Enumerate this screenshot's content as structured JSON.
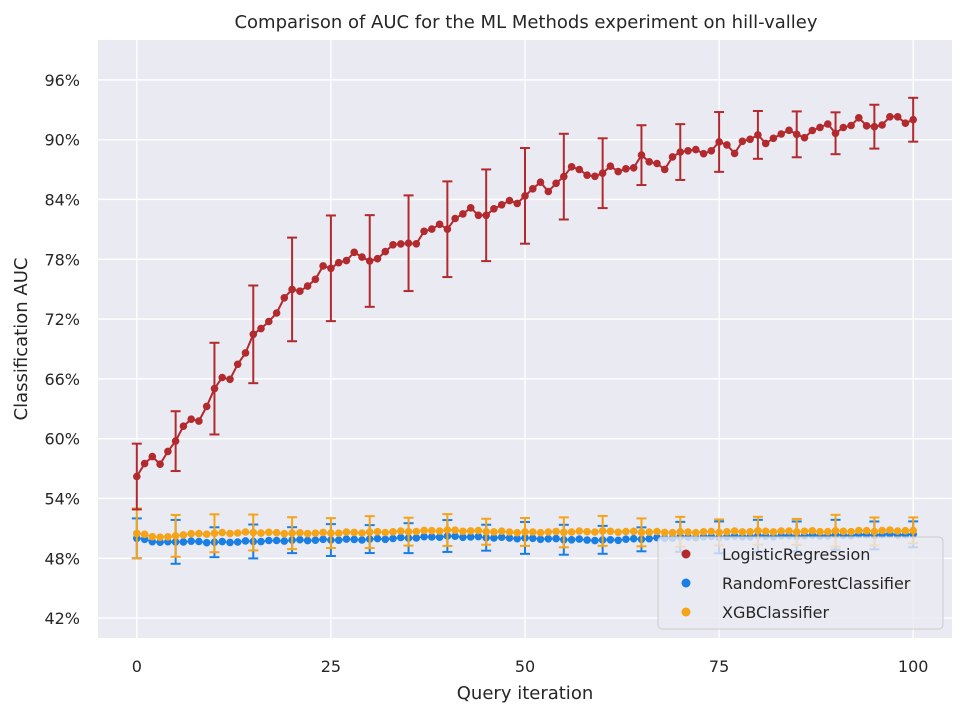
{
  "chart_data": {
    "type": "line",
    "title": "Comparison of AUC for the ML Methods experiment on hill-valley",
    "xlabel": "Query iteration",
    "ylabel": "Classification AUC",
    "xlim": [
      -5,
      105
    ],
    "ylim": [
      40,
      100
    ],
    "xticks": [
      0,
      25,
      50,
      75,
      100
    ],
    "xtick_labels": [
      "0",
      "25",
      "50",
      "75",
      "100"
    ],
    "yticks": [
      42,
      48,
      54,
      60,
      66,
      72,
      78,
      84,
      90,
      96
    ],
    "ytick_labels": [
      "42%",
      "48%",
      "54%",
      "60%",
      "66%",
      "72%",
      "78%",
      "84%",
      "90%",
      "96%"
    ],
    "grid": true,
    "legend_position": "lower-right",
    "errorbar_every": 5,
    "series": [
      {
        "name": "LogisticRegression",
        "color": "#b22a2e",
        "anchors": {
          "x": [
            0,
            1,
            2,
            3,
            4,
            5,
            6,
            7,
            8,
            9,
            10,
            12,
            15,
            16,
            18,
            20,
            22,
            25,
            27,
            29,
            30,
            31,
            33,
            35,
            37,
            40,
            43,
            45,
            47,
            49,
            50,
            51,
            53,
            55,
            57,
            60,
            63,
            65,
            68,
            70,
            71,
            72,
            74,
            75,
            77,
            80,
            83,
            85,
            88,
            90,
            92,
            95,
            97,
            100
          ],
          "y": [
            56.2,
            57.3,
            57.8,
            58.0,
            58.9,
            59.6,
            60.8,
            62.0,
            62.3,
            63.2,
            64.8,
            66.5,
            69.8,
            71.2,
            72.9,
            74.6,
            75.6,
            77.2,
            78.4,
            78.0,
            77.8,
            78.6,
            79.0,
            79.8,
            80.4,
            81.7,
            82.7,
            82.8,
            83.1,
            84.2,
            84.4,
            85.0,
            85.2,
            86.5,
            86.9,
            86.5,
            87.3,
            87.8,
            87.6,
            88.4,
            88.8,
            89.4,
            88.4,
            89.6,
            89.3,
            90.1,
            90.4,
            90.6,
            91.0,
            91.2,
            91.5,
            91.6,
            91.9,
            92.0
          ]
        },
        "errors": [
          3.3,
          3.0,
          4.6,
          4.9,
          5.2,
          5.3,
          4.6,
          4.8,
          4.8,
          4.6,
          4.8,
          4.3,
          3.5,
          3.0,
          2.8,
          3.0,
          2.4,
          2.3,
          2.1,
          2.2,
          2.2
        ]
      },
      {
        "name": "RandomForestClassifier",
        "color": "#1a7fe5",
        "anchors": {
          "x": [
            0,
            2,
            4,
            6,
            10,
            20,
            30,
            40,
            50,
            60,
            70,
            80,
            90,
            100
          ],
          "y": [
            50.0,
            49.7,
            49.6,
            49.7,
            49.6,
            49.8,
            49.9,
            50.2,
            50.0,
            49.8,
            50.1,
            50.2,
            50.3,
            50.4
          ]
        },
        "errors": [
          2.0,
          2.2,
          1.5,
          1.7,
          1.3,
          1.6,
          1.4,
          1.5,
          1.6,
          1.3,
          1.6,
          1.5,
          1.4,
          1.2,
          1.5,
          1.6,
          1.6,
          1.5,
          1.5,
          1.4,
          1.3
        ]
      },
      {
        "name": "XGBClassifier",
        "color": "#f5a418",
        "anchors": {
          "x": [
            0,
            2,
            4,
            6,
            10,
            15,
            20,
            30,
            40,
            50,
            60,
            70,
            80,
            90,
            100
          ],
          "y": [
            50.5,
            50.2,
            50.1,
            50.4,
            50.5,
            50.6,
            50.5,
            50.6,
            50.8,
            50.6,
            50.7,
            50.6,
            50.7,
            50.7,
            50.8
          ]
        },
        "errors": [
          2.5,
          2.1,
          1.9,
          1.8,
          1.6,
          1.5,
          1.6,
          1.4,
          1.6,
          1.3,
          1.4,
          1.5,
          1.5,
          1.4,
          1.5,
          1.3,
          1.4,
          1.3,
          1.6,
          1.4,
          1.3
        ]
      }
    ]
  }
}
